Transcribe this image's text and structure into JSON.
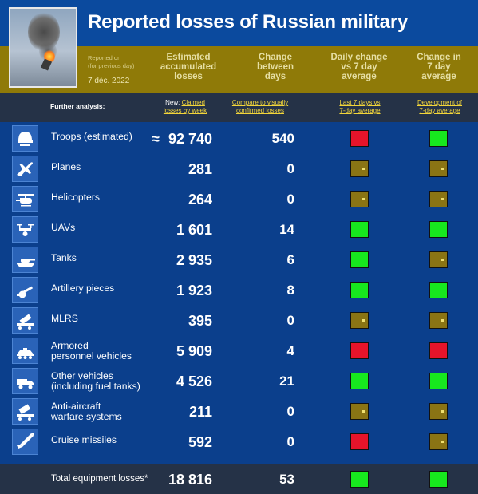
{
  "header": {
    "title": "Reported losses of Russian military",
    "reported_on_line1": "Reported on",
    "reported_on_line2": "(for previous day)",
    "date": "7 déc. 2022",
    "columns": [
      {
        "line1": "Estimated",
        "line2": "accumulated",
        "line3": "losses"
      },
      {
        "line1": "Change",
        "line2": "between",
        "line3": "days"
      },
      {
        "line1": "Daily change",
        "line2": "vs 7 day",
        "line3": "average"
      },
      {
        "line1": "Change in",
        "line2": "7 day",
        "line3": "average"
      }
    ]
  },
  "analysis": {
    "label": "Further analysis:",
    "link1_prefix": "New:",
    "link1_a": "Claimed",
    "link1_b": "losses by week",
    "link2_a": "Compare to visually",
    "link2_b": "confirmed losses",
    "link3_a": "Last 7 days vs",
    "link3_b": "7-day average",
    "link4_a": "Development of",
    "link4_b": "7-day average"
  },
  "colors": {
    "green": "#17e81e",
    "red": "#e6142a",
    "neutral": "#8a7414"
  },
  "rows": [
    {
      "icon": "helmet-icon",
      "label1": "Troops (estimated)",
      "label2": "",
      "approx": "≈",
      "value": "92 740",
      "change": "540",
      "daily": "red",
      "trend": "green"
    },
    {
      "icon": "jet-icon",
      "label1": "Planes",
      "label2": "",
      "approx": "",
      "value": "281",
      "change": "0",
      "daily": "neutral",
      "trend": "neutral"
    },
    {
      "icon": "helicopter-icon",
      "label1": "Helicopters",
      "label2": "",
      "approx": "",
      "value": "264",
      "change": "0",
      "daily": "neutral",
      "trend": "neutral"
    },
    {
      "icon": "drone-icon",
      "label1": "UAVs",
      "label2": "",
      "approx": "",
      "value": "1 601",
      "change": "14",
      "daily": "green",
      "trend": "green"
    },
    {
      "icon": "tank-icon",
      "label1": "Tanks",
      "label2": "",
      "approx": "",
      "value": "2 935",
      "change": "6",
      "daily": "green",
      "trend": "neutral"
    },
    {
      "icon": "artillery-icon",
      "label1": "Artillery pieces",
      "label2": "",
      "approx": "",
      "value": "1 923",
      "change": "8",
      "daily": "green",
      "trend": "green"
    },
    {
      "icon": "rocket-launcher-icon",
      "label1": "MLRS",
      "label2": "",
      "approx": "",
      "value": "395",
      "change": "0",
      "daily": "neutral",
      "trend": "neutral"
    },
    {
      "icon": "apc-icon",
      "label1": "Armored",
      "label2": "personnel vehicles",
      "approx": "",
      "value": "5 909",
      "change": "4",
      "daily": "red",
      "trend": "red"
    },
    {
      "icon": "truck-icon",
      "label1": "Other vehicles",
      "label2": "(including fuel tanks)",
      "approx": "",
      "value": "4 526",
      "change": "21",
      "daily": "green",
      "trend": "green"
    },
    {
      "icon": "air-defense-icon",
      "label1": "Anti-aircraft",
      "label2": "warfare systems",
      "approx": "",
      "value": "211",
      "change": "0",
      "daily": "neutral",
      "trend": "neutral"
    },
    {
      "icon": "missile-icon",
      "label1": "Cruise missiles",
      "label2": "",
      "approx": "",
      "value": "592",
      "change": "0",
      "daily": "red",
      "trend": "neutral"
    }
  ],
  "total": {
    "label": "Total equipment losses*",
    "value": "18 816",
    "change": "53",
    "daily": "green",
    "trend": "green"
  }
}
